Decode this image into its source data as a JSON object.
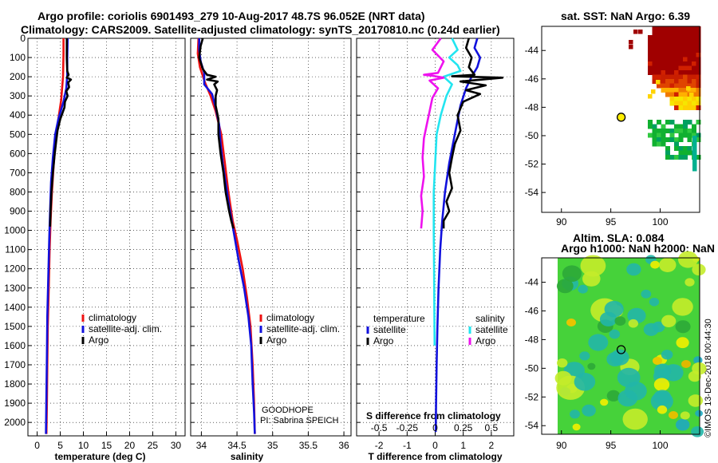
{
  "title_line1": "Argo profile: coriolis 6901493_279 10-Aug-2017 48.7S 96.052E (NRT data)",
  "title_line2": "Climatology: CARS2009. Satellite-adjusted climatology: synTS_20170810.nc (0.24d earlier)",
  "map1_title": "sat. SST: NaN Argo: 6.39",
  "map2_title1": "Altim. SLA: 0.084",
  "map2_title2": "Argo h1000: NaN h2000: NaN",
  "credit": "©IMOS 13-Dec-2018 00:44:30",
  "note_line1": "GOODHOPE",
  "note_line2": "PI: Sabrina SPEICH",
  "colors": {
    "red": "#ee1111",
    "blue": "#1111dd",
    "black": "#000000",
    "cyan": "#22e5f0",
    "magenta": "#ee11ee"
  },
  "chart_data": [
    {
      "type": "line",
      "panel": "temperature",
      "xlabel": "temperature (deg C)",
      "xlim": [
        -2,
        32
      ],
      "xticks": [
        0,
        5,
        10,
        15,
        20,
        25,
        30
      ],
      "xtick_labels": [
        "0",
        "5",
        "10",
        "15",
        "20",
        "25",
        "30"
      ],
      "ylim": [
        0,
        2070
      ],
      "yticks": [
        0,
        100,
        200,
        300,
        400,
        500,
        600,
        700,
        800,
        900,
        1000,
        1100,
        1200,
        1300,
        1400,
        1500,
        1600,
        1700,
        1800,
        1900,
        2000
      ],
      "ytick_labels": [
        "0",
        "100",
        "200",
        "300",
        "400",
        "500",
        "600",
        "700",
        "800",
        "900",
        "1000",
        "1100",
        "1200",
        "1300",
        "1400",
        "1500",
        "1600",
        "1700",
        "1800",
        "1900",
        "2000"
      ],
      "legend": [
        "climatology",
        "satellite-adj. clim.",
        "Argo"
      ],
      "series": [
        {
          "name": "climatology",
          "color": "red",
          "points": [
            [
              5.7,
              0
            ],
            [
              5.7,
              80
            ],
            [
              5.6,
              200
            ],
            [
              5.2,
              320
            ],
            [
              4.6,
              420
            ],
            [
              4.1,
              520
            ],
            [
              3.6,
              650
            ],
            [
              3.2,
              800
            ],
            [
              2.9,
              950
            ],
            [
              2.7,
              1100
            ],
            [
              2.5,
              1300
            ],
            [
              2.3,
              1500
            ],
            [
              2.2,
              1700
            ],
            [
              2.1,
              1900
            ],
            [
              2.0,
              2060
            ]
          ]
        },
        {
          "name": "satellite-adj. clim.",
          "color": "blue",
          "points": [
            [
              6.6,
              0
            ],
            [
              6.5,
              100
            ],
            [
              6.5,
              190
            ],
            [
              6.3,
              260
            ],
            [
              5.7,
              330
            ],
            [
              4.6,
              420
            ],
            [
              3.9,
              500
            ],
            [
              3.4,
              620
            ],
            [
              3.0,
              750
            ],
            [
              2.8,
              900
            ],
            [
              2.6,
              1050
            ],
            [
              2.4,
              1250
            ],
            [
              2.2,
              1450
            ],
            [
              2.1,
              1650
            ],
            [
              2.0,
              1850
            ],
            [
              1.9,
              2060
            ]
          ]
        },
        {
          "name": "Argo",
          "color": "black",
          "points": [
            [
              6.4,
              0
            ],
            [
              6.4,
              100
            ],
            [
              6.5,
              170
            ],
            [
              6.8,
              190
            ],
            [
              6.4,
              205
            ],
            [
              7.3,
              215
            ],
            [
              6.7,
              230
            ],
            [
              6.9,
              255
            ],
            [
              6.3,
              275
            ],
            [
              6.6,
              300
            ],
            [
              6.0,
              330
            ],
            [
              5.9,
              360
            ],
            [
              5.0,
              420
            ],
            [
              4.4,
              480
            ],
            [
              4.2,
              520
            ],
            [
              3.8,
              600
            ],
            [
              3.4,
              700
            ],
            [
              3.1,
              800
            ],
            [
              2.9,
              900
            ],
            [
              2.8,
              980
            ]
          ]
        }
      ]
    },
    {
      "type": "line",
      "panel": "salinity",
      "xlabel": "salinity",
      "xlim": [
        33.85,
        36.1
      ],
      "xticks": [
        34,
        34.5,
        35,
        35.5,
        36
      ],
      "xtick_labels": [
        "34",
        "34.5",
        "35",
        "35.5",
        "36"
      ],
      "ylim": [
        0,
        2070
      ],
      "legend": [
        "climatology",
        "satellite-adj. clim.",
        "Argo"
      ],
      "series": [
        {
          "name": "climatology",
          "color": "red",
          "points": [
            [
              33.96,
              0
            ],
            [
              33.95,
              80
            ],
            [
              33.98,
              150
            ],
            [
              34.05,
              230
            ],
            [
              34.13,
              300
            ],
            [
              34.2,
              380
            ],
            [
              34.28,
              500
            ],
            [
              34.33,
              650
            ],
            [
              34.38,
              800
            ],
            [
              34.44,
              950
            ],
            [
              34.5,
              1050
            ],
            [
              34.58,
              1200
            ],
            [
              34.64,
              1350
            ],
            [
              34.69,
              1500
            ],
            [
              34.72,
              1700
            ],
            [
              34.74,
              1900
            ],
            [
              34.75,
              2060
            ]
          ]
        },
        {
          "name": "satellite-adj. clim.",
          "color": "blue",
          "points": [
            [
              33.97,
              0
            ],
            [
              33.97,
              60
            ],
            [
              33.99,
              120
            ],
            [
              34.04,
              180
            ],
            [
              34.04,
              240
            ],
            [
              34.15,
              290
            ],
            [
              34.2,
              360
            ],
            [
              34.25,
              450
            ],
            [
              34.27,
              550
            ],
            [
              34.3,
              650
            ],
            [
              34.34,
              750
            ],
            [
              34.38,
              850
            ],
            [
              34.45,
              1000
            ],
            [
              34.52,
              1150
            ],
            [
              34.6,
              1300
            ],
            [
              34.66,
              1450
            ],
            [
              34.7,
              1600
            ],
            [
              34.72,
              1800
            ],
            [
              34.74,
              1950
            ],
            [
              34.75,
              2060
            ]
          ]
        },
        {
          "name": "Argo",
          "color": "black",
          "points": [
            [
              34.02,
              0
            ],
            [
              33.99,
              40
            ],
            [
              33.97,
              100
            ],
            [
              34.02,
              160
            ],
            [
              34.08,
              190
            ],
            [
              34.2,
              200
            ],
            [
              34.08,
              215
            ],
            [
              34.23,
              225
            ],
            [
              34.18,
              240
            ],
            [
              34.22,
              270
            ],
            [
              34.2,
              300
            ],
            [
              34.2,
              350
            ],
            [
              34.24,
              420
            ],
            [
              34.24,
              500
            ],
            [
              34.27,
              600
            ],
            [
              34.31,
              700
            ],
            [
              34.34,
              800
            ],
            [
              34.39,
              900
            ],
            [
              34.42,
              950
            ],
            [
              34.45,
              990
            ]
          ]
        }
      ]
    },
    {
      "type": "line",
      "panel": "difference",
      "xlabel": "T difference from climatology",
      "xlabel_top": "S difference from climatology",
      "xlim": [
        -2.8,
        2.8
      ],
      "xticks": [
        -2,
        -1,
        0,
        1,
        2
      ],
      "xtick_labels": [
        "-2",
        "-1",
        "0",
        "1",
        "2"
      ],
      "top_ticks": [
        -2,
        -1,
        0,
        1,
        2
      ],
      "top_tick_labels": [
        "-0.5",
        "-0.25",
        "0",
        "0.25",
        "0.5"
      ],
      "ylim": [
        0,
        2070
      ],
      "legend_temperature_title": "temperature",
      "legend_salinity_title": "salinity",
      "legend_temperature": [
        "satellite",
        "Argo"
      ],
      "legend_salinity": [
        "satellite",
        "Argo"
      ],
      "series": [
        {
          "name": "T satellite",
          "color": "blue",
          "points": [
            [
              1.5,
              0
            ],
            [
              1.4,
              50
            ],
            [
              1.6,
              100
            ],
            [
              1.5,
              150
            ],
            [
              1.3,
              200
            ],
            [
              1.1,
              260
            ],
            [
              0.9,
              350
            ],
            [
              0.7,
              500
            ],
            [
              0.5,
              650
            ],
            [
              0.35,
              800
            ],
            [
              0.25,
              950
            ],
            [
              0.18,
              1100
            ],
            [
              0.12,
              1300
            ],
            [
              0.08,
              1500
            ],
            [
              0.05,
              1700
            ],
            [
              0.03,
              1900
            ],
            [
              0.02,
              2050
            ]
          ]
        },
        {
          "name": "T Argo",
          "color": "black",
          "points": [
            [
              1.2,
              0
            ],
            [
              1.1,
              50
            ],
            [
              1.3,
              100
            ],
            [
              1.2,
              150
            ],
            [
              1.4,
              190
            ],
            [
              0.6,
              198
            ],
            [
              2.4,
              205
            ],
            [
              0.9,
              225
            ],
            [
              1.8,
              245
            ],
            [
              1.1,
              270
            ],
            [
              1.6,
              290
            ],
            [
              1.0,
              330
            ],
            [
              0.8,
              400
            ],
            [
              0.9,
              480
            ],
            [
              0.7,
              550
            ],
            [
              0.6,
              620
            ],
            [
              0.5,
              700
            ],
            [
              0.6,
              780
            ],
            [
              0.4,
              850
            ],
            [
              0.5,
              900
            ],
            [
              0.3,
              950
            ],
            [
              0.3,
              990
            ]
          ]
        },
        {
          "name": "S satellite",
          "color": "cyan",
          "points": [
            [
              0.6,
              0
            ],
            [
              0.8,
              60
            ],
            [
              0.5,
              100
            ],
            [
              0.8,
              140
            ],
            [
              0.9,
              170
            ],
            [
              0.3,
              200
            ],
            [
              0.6,
              240
            ],
            [
              0.4,
              300
            ],
            [
              0.2,
              400
            ],
            [
              0.05,
              500
            ],
            [
              0.0,
              650
            ],
            [
              -0.05,
              800
            ],
            [
              -0.05,
              1000
            ],
            [
              -0.04,
              1200
            ],
            [
              -0.03,
              1400
            ],
            [
              -0.02,
              1600
            ]
          ]
        },
        {
          "name": "S Argo",
          "color": "magenta",
          "points": [
            [
              0.2,
              0
            ],
            [
              -0.1,
              60
            ],
            [
              0.3,
              120
            ],
            [
              0.1,
              180
            ],
            [
              -0.4,
              190
            ],
            [
              -0.1,
              195
            ],
            [
              0.3,
              205
            ],
            [
              -0.2,
              220
            ],
            [
              0.1,
              260
            ],
            [
              -0.1,
              310
            ],
            [
              -0.2,
              380
            ],
            [
              -0.3,
              450
            ],
            [
              -0.4,
              520
            ],
            [
              -0.45,
              620
            ],
            [
              -0.4,
              720
            ],
            [
              -0.5,
              820
            ],
            [
              -0.45,
              900
            ],
            [
              -0.5,
              990
            ]
          ]
        }
      ]
    },
    {
      "type": "heatmap",
      "panel": "sst_map",
      "title": "sat. SST: NaN Argo: 6.39",
      "xlim": [
        88,
        104
      ],
      "ylim": [
        -55.4,
        -42.3
      ],
      "xticks": [
        90,
        95,
        100
      ],
      "xtick_labels": [
        "90",
        "95",
        "100"
      ],
      "yticks": [
        -44,
        -46,
        -48,
        -50,
        -52,
        -54
      ],
      "ytick_labels": [
        "-44",
        "-46",
        "-48",
        "-50",
        "-52",
        "-54"
      ],
      "marker": [
        96.05,
        -48.7
      ]
    },
    {
      "type": "heatmap",
      "panel": "sla_map",
      "title": "Altim. SLA: 0.084",
      "xlim": [
        88,
        104
      ],
      "ylim": [
        -54.6,
        -42.3
      ],
      "xticks": [
        90,
        95,
        100
      ],
      "xtick_labels": [
        "90",
        "95",
        "100"
      ],
      "yticks": [
        -44,
        -46,
        -48,
        -50,
        -52,
        -54
      ],
      "ytick_labels": [
        "-44",
        "-46",
        "-48",
        "-50",
        "-52",
        "-54"
      ],
      "marker": [
        96.05,
        -48.7
      ]
    }
  ]
}
